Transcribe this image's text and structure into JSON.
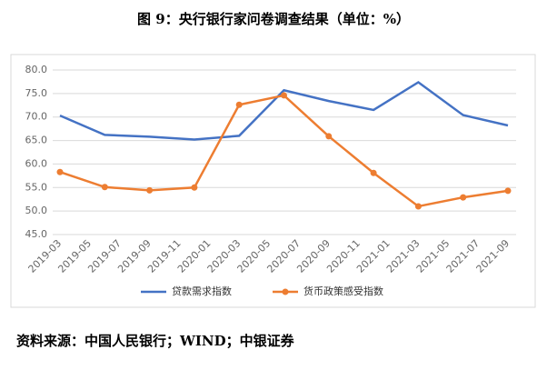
{
  "chart_data": {
    "type": "line",
    "title": "图 9：央行银行家问卷调查结果（单位：%）",
    "source": "资料来源：中国人民银行；WIND；中银证券",
    "xticks": [
      "2019-03",
      "2019-05",
      "2019-07",
      "2019-09",
      "2019-11",
      "2020-01",
      "2020-03",
      "2020-05",
      "2020-07",
      "2020-09",
      "2020-11",
      "2021-01",
      "2021-03",
      "2021-05",
      "2021-07",
      "2021-09"
    ],
    "x": [
      "2019-03",
      "2019-06",
      "2019-09",
      "2019-12",
      "2020-03",
      "2020-06",
      "2020-09",
      "2020-12",
      "2021-03",
      "2021-06",
      "2021-09"
    ],
    "series": [
      {
        "name": "贷款需求指数",
        "color": "#4472c4",
        "values": [
          70.3,
          66.2,
          65.8,
          65.2,
          66.0,
          75.7,
          73.4,
          71.5,
          77.4,
          70.4,
          68.2
        ]
      },
      {
        "name": "货币政策感受指数",
        "color": "#ed7d31",
        "values": [
          58.3,
          55.1,
          54.4,
          55.0,
          72.6,
          74.6,
          65.9,
          58.1,
          51.0,
          52.9,
          54.3
        ]
      }
    ],
    "ylim": [
      45,
      80
    ],
    "yticks": [
      {
        "value": 45,
        "label": "45.0"
      },
      {
        "value": 50,
        "label": "50.0"
      },
      {
        "value": 55,
        "label": "55.0"
      },
      {
        "value": 60,
        "label": "60.0"
      },
      {
        "value": 65,
        "label": "65.0"
      },
      {
        "value": 70,
        "label": "70.0"
      },
      {
        "value": 75,
        "label": "75.0"
      },
      {
        "value": 80,
        "label": "80.0"
      }
    ],
    "grid": true
  }
}
